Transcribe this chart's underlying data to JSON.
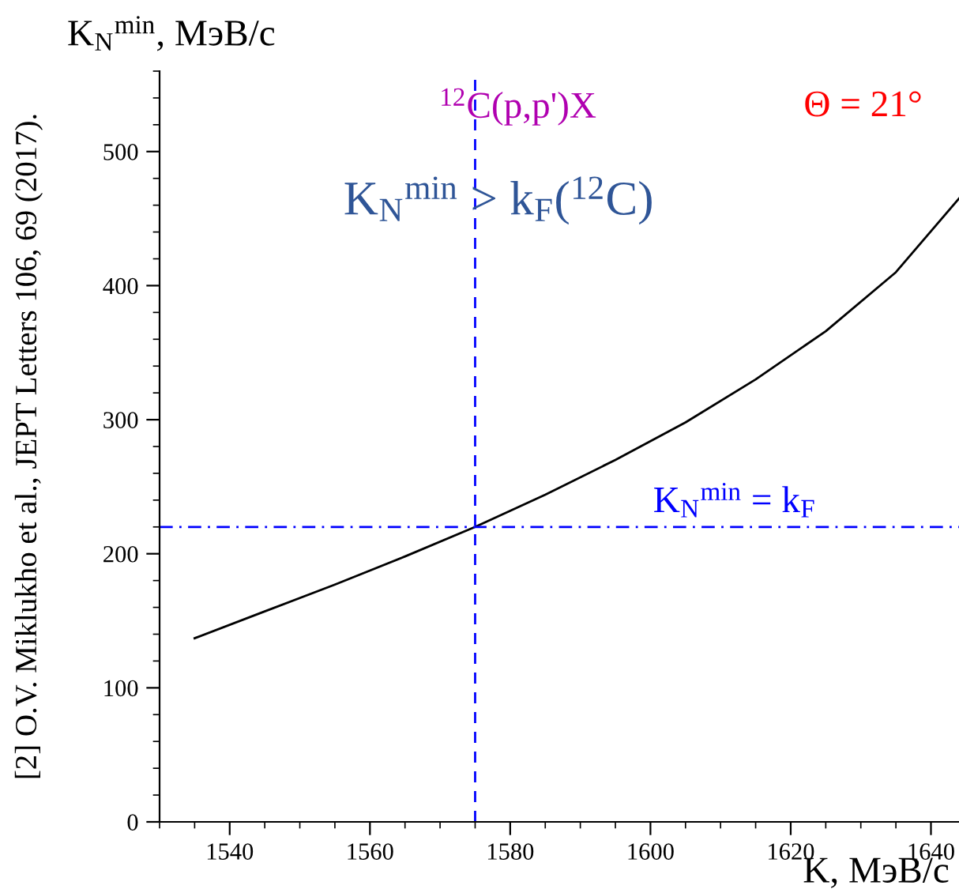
{
  "chart_data": {
    "type": "line",
    "xlabel": "K, МэВ/c",
    "ylabel": "K$_{N}$$^{min}$, МэВ/c",
    "x": [
      1535,
      1545,
      1555,
      1565,
      1575,
      1585,
      1595,
      1605,
      1615,
      1625,
      1635,
      1644
    ],
    "series": [
      {
        "color": "#000000",
        "values": [
          137,
          157,
          177,
          198,
          220,
          244,
          270,
          298,
          330,
          366,
          410,
          465
        ]
      }
    ],
    "xlim": [
      1530,
      1644
    ],
    "xticks": [
      1540,
      1560,
      1580,
      1600,
      1620,
      1640
    ],
    "ylim": [
      0,
      560
    ],
    "yticks": [
      0,
      100,
      200,
      300,
      400,
      500
    ],
    "grid": false,
    "legend": false,
    "marker": "none",
    "line_style": "solid",
    "ref_lines": [
      {
        "axis": "y",
        "value": 220,
        "label": "K$_{N}$$^{min}$ = k$_{F}$",
        "color": "#0000ff",
        "line_style": "dashdot"
      },
      {
        "axis": "x",
        "value": 1575,
        "label": null,
        "color": "#0000ff",
        "line_style": "dashed"
      }
    ],
    "annotations": [
      "$^{12}$C(p,p')X",
      "Θ = 21°",
      "K$_{N}$$^{min}$ > k$_{F}$($^{12}$C)",
      "[2] O.V. Miklukho et al., JEPT Letters 106, 69 (2017)."
    ]
  }
}
